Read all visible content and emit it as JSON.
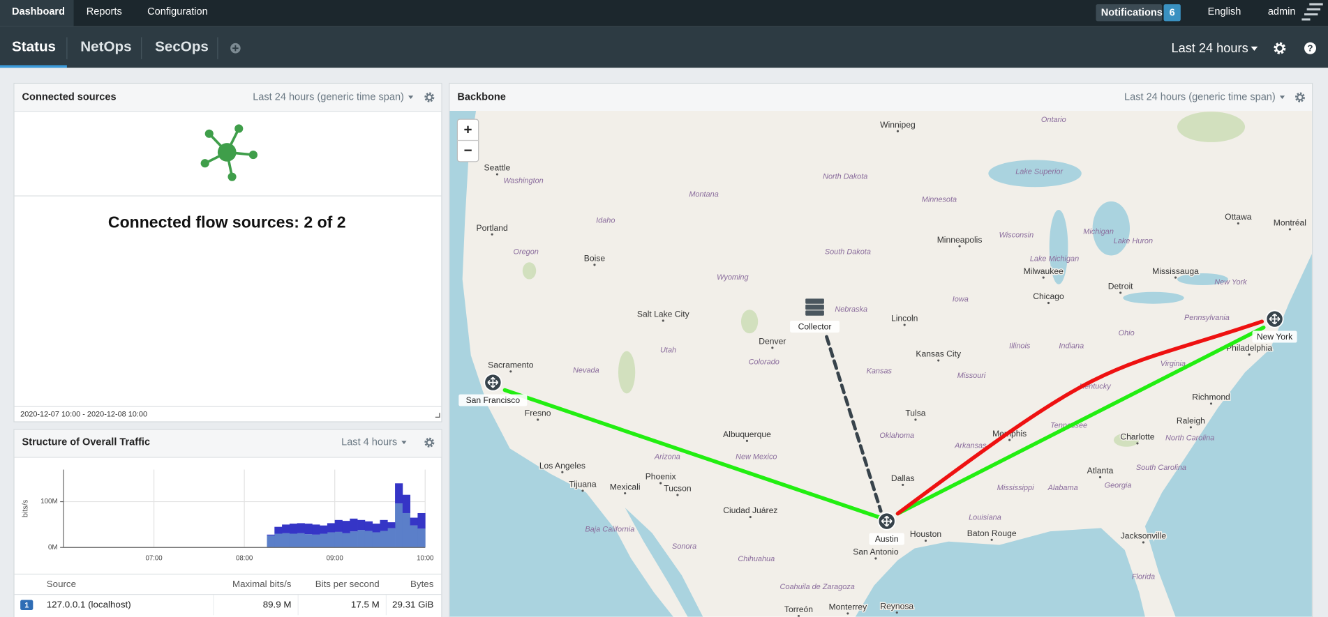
{
  "navbar": {
    "items": [
      "Dashboard",
      "Reports",
      "Configuration"
    ],
    "notifications": "Notifications",
    "notification_count": "6",
    "language": "English",
    "user": "admin"
  },
  "tabs": {
    "items": [
      "Status",
      "NetOps",
      "SecOps"
    ],
    "time_range": "Last 24 hours"
  },
  "connected_sources": {
    "title": "Connected sources",
    "time_span": "Last 24 hours (generic time span)",
    "message": "Connected flow sources: 2 of 2",
    "period": "2020-12-07 10:00 - 2020-12-08 10:00"
  },
  "traffic": {
    "title": "Structure of Overall Traffic",
    "time_span": "Last 4 hours"
  },
  "chart_data": {
    "type": "area",
    "y_label": "bits/s",
    "x": [
      "08:15",
      "08:20",
      "08:25",
      "08:30",
      "08:35",
      "08:40",
      "08:45",
      "08:50",
      "08:55",
      "09:00",
      "09:05",
      "09:10",
      "09:15",
      "09:20",
      "09:25",
      "09:30",
      "09:35",
      "09:40",
      "09:45",
      "09:50",
      "09:55"
    ],
    "xlim": [
      "06:00",
      "10:00"
    ],
    "xticks": [
      "07:00",
      "08:00",
      "09:00",
      "10:00"
    ],
    "ylim": [
      0,
      170000000
    ],
    "yticks": [
      {
        "value": 0,
        "label": "0M"
      },
      {
        "value": 100000000,
        "label": "100M"
      }
    ],
    "stacked": true,
    "grid": true,
    "series": [
      {
        "color": "#5b7fc9",
        "values": [
          26000000,
          30000000,
          31000000,
          30000000,
          31000000,
          29000000,
          28000000,
          30000000,
          33000000,
          34000000,
          31000000,
          35000000,
          38000000,
          36000000,
          33000000,
          36000000,
          42000000,
          96000000,
          75000000,
          48000000,
          41000000
        ]
      },
      {
        "color": "#3535c6",
        "values": [
          2000000,
          15000000,
          19000000,
          22000000,
          22000000,
          23000000,
          22000000,
          18000000,
          20000000,
          26000000,
          27000000,
          28000000,
          22000000,
          21000000,
          19000000,
          24000000,
          13000000,
          44000000,
          40000000,
          17000000,
          34000000
        ]
      }
    ]
  },
  "table": {
    "columns": [
      "Source",
      "Maximal bits/s",
      "Bits per second",
      "Bytes"
    ],
    "rows": [
      {
        "index": "1",
        "cells": [
          "127.0.0.1 (localhost)",
          "89.9 M",
          "17.5 M",
          "29.31 GiB"
        ]
      }
    ]
  },
  "backbone": {
    "title": "Backbone",
    "time_span": "Last 24 hours (generic time span)",
    "zoom_in": "+",
    "zoom_out": "−",
    "nodes": [
      "San Francisco",
      "Austin",
      "New York",
      "Collector"
    ],
    "places": [
      "Winnipeg",
      "Seattle",
      "Portland",
      "Boise",
      "Minneapolis",
      "Milwaukee",
      "Chicago",
      "Detroit",
      "Mississauga",
      "Ottawa",
      "Montréal",
      "Salt Lake City",
      "Lincoln",
      "Denver",
      "Kansas City",
      "Philadelphia",
      "Sacramento",
      "Fresno",
      "Tulsa",
      "Richmond",
      "Albuquerque",
      "Memphis",
      "Charlotte",
      "Raleigh",
      "Los Angeles",
      "Phoenix",
      "Dallas",
      "Atlanta",
      "Tijuana",
      "Mexicali",
      "Tucson",
      "Ciudad Juárez",
      "Houston",
      "Baton Rouge",
      "Jacksonville",
      "San Antonio",
      "Torreón",
      "Monterrey",
      "Reynosa"
    ],
    "regions": [
      "Ontario",
      "Washington",
      "North Dakota",
      "Montana",
      "Minnesota",
      "Idaho",
      "Lake Superior",
      "Michigan",
      "Wisconsin",
      "Oregon",
      "South Dakota",
      "Lake Huron",
      "Lake Michigan",
      "Wyoming",
      "New York",
      "Iowa",
      "Nebraska",
      "Pennsylvania",
      "Ohio",
      "Illinois",
      "Indiana",
      "Utah",
      "Colorado",
      "Nevada",
      "Kansas",
      "Missouri",
      "Virginia",
      "Kentucky",
      "Oklahoma",
      "Tennessee",
      "North Carolina",
      "Arkansas",
      "Arizona",
      "New Mexico",
      "South Carolina",
      "Mississippi",
      "Alabama",
      "Georgia",
      "Louisiana",
      "Baja California",
      "Sonora",
      "Chihuahua",
      "Florida",
      "Coahuila de Zaragoza"
    ]
  }
}
